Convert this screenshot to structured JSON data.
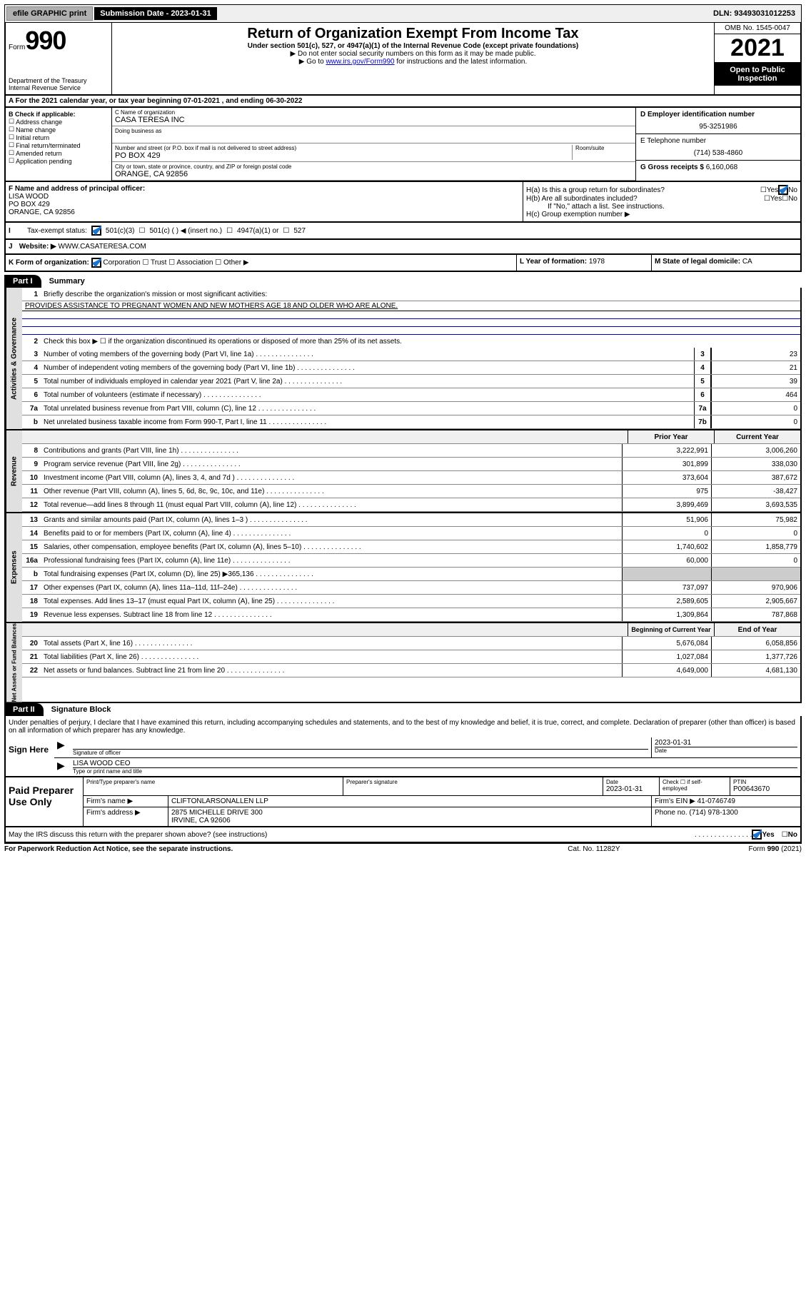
{
  "topbar": {
    "efile": "efile GRAPHIC print",
    "sub_label": "Submission Date - 2023-01-31",
    "dln": "DLN: 93493031012253"
  },
  "header": {
    "form": "Form",
    "num": "990",
    "dept": "Department of the Treasury\nInternal Revenue Service",
    "title": "Return of Organization Exempt From Income Tax",
    "sub": "Under section 501(c), 527, or 4947(a)(1) of the Internal Revenue Code (except private foundations)",
    "note1": "▶ Do not enter social security numbers on this form as it may be made public.",
    "note2_pre": "▶ Go to ",
    "note2_link": "www.irs.gov/Form990",
    "note2_post": " for instructions and the latest information.",
    "omb": "OMB No. 1545-0047",
    "year": "2021",
    "open": "Open to Public Inspection"
  },
  "row_a": "A For the 2021 calendar year, or tax year beginning 07-01-2021   , and ending 06-30-2022",
  "col_b": {
    "hdr": "B Check if applicable:",
    "items": [
      "Address change",
      "Name change",
      "Initial return",
      "Final return/terminated",
      "Amended return",
      "Application pending"
    ]
  },
  "col_c": {
    "name_lbl": "C Name of organization",
    "name": "CASA TERESA INC",
    "dba_lbl": "Doing business as",
    "addr_lbl": "Number and street (or P.O. box if mail is not delivered to street address)",
    "room_lbl": "Room/suite",
    "addr": "PO BOX 429",
    "city_lbl": "City or town, state or province, country, and ZIP or foreign postal code",
    "city": "ORANGE, CA  92856"
  },
  "col_d": {
    "ein_lbl": "D Employer identification number",
    "ein": "95-3251986",
    "tel_lbl": "E Telephone number",
    "tel": "(714) 538-4860",
    "gross_lbl": "G Gross receipts $",
    "gross": "6,160,068"
  },
  "row_f": {
    "lbl": "F Name and address of principal officer:",
    "name": "LISA WOOD",
    "addr1": "PO BOX 429",
    "addr2": "ORANGE, CA  92856"
  },
  "row_h": {
    "ha": "H(a)  Is this a group return for subordinates?",
    "hb": "H(b)  Are all subordinates included?",
    "hb_note": "If \"No,\" attach a list. See instructions.",
    "hc": "H(c)  Group exemption number ▶",
    "yes": "Yes",
    "no": "No"
  },
  "row_i": {
    "lbl": "Tax-exempt status:",
    "opt1": "501(c)(3)",
    "opt2": "501(c) (  ) ◀ (insert no.)",
    "opt3": "4947(a)(1) or",
    "opt4": "527"
  },
  "row_j": {
    "lbl": "Website: ▶",
    "val": "WWW.CASATERESA.COM"
  },
  "row_k": {
    "lbl": "K Form of organization:",
    "opts": [
      "Corporation",
      "Trust",
      "Association",
      "Other ▶"
    ],
    "l_lbl": "L Year of formation:",
    "l_val": "1978",
    "m_lbl": "M State of legal domicile:",
    "m_val": "CA"
  },
  "part1": {
    "hdr": "Part I",
    "title": "Summary"
  },
  "summary": {
    "l1_lbl": "Briefly describe the organization's mission or most significant activities:",
    "l1_val": "PROVIDES ASSISTANCE TO PREGNANT WOMEN AND NEW MOTHERS AGE 18 AND OLDER WHO ARE ALONE.",
    "l2": "Check this box ▶ ☐  if the organization discontinued its operations or disposed of more than 25% of its net assets.",
    "rows_gov": [
      {
        "n": "3",
        "d": "Number of voting members of the governing body (Part VI, line 1a)",
        "v": "23"
      },
      {
        "n": "4",
        "d": "Number of independent voting members of the governing body (Part VI, line 1b)",
        "v": "21"
      },
      {
        "n": "5",
        "d": "Total number of individuals employed in calendar year 2021 (Part V, line 2a)",
        "v": "39"
      },
      {
        "n": "6",
        "d": "Total number of volunteers (estimate if necessary)",
        "v": "464"
      },
      {
        "n": "7a",
        "d": "Total unrelated business revenue from Part VIII, column (C), line 12",
        "v": "0"
      },
      {
        "n": "b",
        "d": "Net unrelated business taxable income from Form 990-T, Part I, line 11",
        "box": "7b",
        "v": "0"
      }
    ],
    "hdr_prior": "Prior Year",
    "hdr_curr": "Current Year",
    "rows_rev": [
      {
        "n": "8",
        "d": "Contributions and grants (Part VIII, line 1h)",
        "p": "3,222,991",
        "c": "3,006,260"
      },
      {
        "n": "9",
        "d": "Program service revenue (Part VIII, line 2g)",
        "p": "301,899",
        "c": "338,030"
      },
      {
        "n": "10",
        "d": "Investment income (Part VIII, column (A), lines 3, 4, and 7d )",
        "p": "373,604",
        "c": "387,672"
      },
      {
        "n": "11",
        "d": "Other revenue (Part VIII, column (A), lines 5, 6d, 8c, 9c, 10c, and 11e)",
        "p": "975",
        "c": "-38,427"
      },
      {
        "n": "12",
        "d": "Total revenue—add lines 8 through 11 (must equal Part VIII, column (A), line 12)",
        "p": "3,899,469",
        "c": "3,693,535"
      }
    ],
    "rows_exp": [
      {
        "n": "13",
        "d": "Grants and similar amounts paid (Part IX, column (A), lines 1–3 )",
        "p": "51,906",
        "c": "75,982"
      },
      {
        "n": "14",
        "d": "Benefits paid to or for members (Part IX, column (A), line 4)",
        "p": "0",
        "c": "0"
      },
      {
        "n": "15",
        "d": "Salaries, other compensation, employee benefits (Part IX, column (A), lines 5–10)",
        "p": "1,740,602",
        "c": "1,858,779"
      },
      {
        "n": "16a",
        "d": "Professional fundraising fees (Part IX, column (A), line 11e)",
        "p": "60,000",
        "c": "0"
      },
      {
        "n": "b",
        "d": "Total fundraising expenses (Part IX, column (D), line 25) ▶365,136",
        "p": "",
        "c": ""
      },
      {
        "n": "17",
        "d": "Other expenses (Part IX, column (A), lines 11a–11d, 11f–24e)",
        "p": "737,097",
        "c": "970,906"
      },
      {
        "n": "18",
        "d": "Total expenses. Add lines 13–17 (must equal Part IX, column (A), line 25)",
        "p": "2,589,605",
        "c": "2,905,667"
      },
      {
        "n": "19",
        "d": "Revenue less expenses. Subtract line 18 from line 12",
        "p": "1,309,864",
        "c": "787,868"
      }
    ],
    "hdr_beg": "Beginning of Current Year",
    "hdr_end": "End of Year",
    "rows_net": [
      {
        "n": "20",
        "d": "Total assets (Part X, line 16)",
        "p": "5,676,084",
        "c": "6,058,856"
      },
      {
        "n": "21",
        "d": "Total liabilities (Part X, line 26)",
        "p": "1,027,084",
        "c": "1,377,726"
      },
      {
        "n": "22",
        "d": "Net assets or fund balances. Subtract line 21 from line 20",
        "p": "4,649,000",
        "c": "4,681,130"
      }
    ],
    "vtab_gov": "Activities & Governance",
    "vtab_rev": "Revenue",
    "vtab_exp": "Expenses",
    "vtab_net": "Net Assets or Fund Balances"
  },
  "part2": {
    "hdr": "Part II",
    "title": "Signature Block"
  },
  "sig": {
    "decl": "Under penalties of perjury, I declare that I have examined this return, including accompanying schedules and statements, and to the best of my knowledge and belief, it is true, correct, and complete. Declaration of preparer (other than officer) is based on all information of which preparer has any knowledge.",
    "sign_here": "Sign Here",
    "sig_officer": "Signature of officer",
    "date": "Date",
    "date_val": "2023-01-31",
    "name_title": "LISA WOOD CEO",
    "type_lbl": "Type or print name and title"
  },
  "paid": {
    "hdr": "Paid Preparer Use Only",
    "c1": "Print/Type preparer's name",
    "c2": "Preparer's signature",
    "c3": "Date",
    "c3_val": "2023-01-31",
    "c4": "Check ☐ if self-employed",
    "c5": "PTIN",
    "c5_val": "P00643670",
    "firm_name_lbl": "Firm's name    ▶",
    "firm_name": "CLIFTONLARSONALLEN LLP",
    "firm_ein_lbl": "Firm's EIN ▶",
    "firm_ein": "41-0746749",
    "firm_addr_lbl": "Firm's address ▶",
    "firm_addr1": "2875 MICHELLE DRIVE 300",
    "firm_addr2": "IRVINE, CA  92606",
    "phone_lbl": "Phone no.",
    "phone": "(714) 978-1300"
  },
  "discuss": {
    "q": "May the IRS discuss this return with the preparer shown above? (see instructions)",
    "yes": "Yes",
    "no": "No"
  },
  "footer": {
    "l": "For Paperwork Reduction Act Notice, see the separate instructions.",
    "m": "Cat. No. 11282Y",
    "r": "Form 990 (2021)"
  }
}
